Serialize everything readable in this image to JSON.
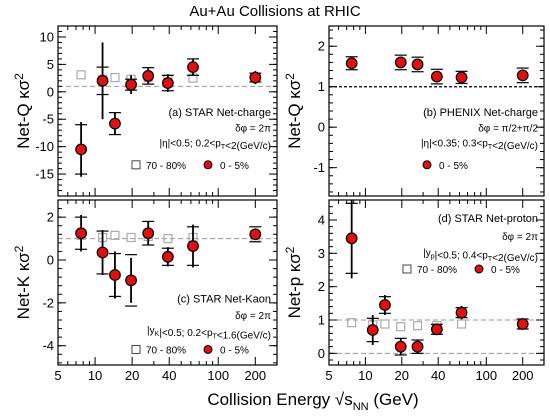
{
  "figure": {
    "title": "Au+Au Collisions at RHIC",
    "xlabel_main": "Collision Energy √s",
    "xlabel_sub": "NN",
    "xlabel_unit": " (GeV)"
  },
  "chart_data": [
    {
      "type": "scatter",
      "panel": "(a)",
      "ylabel": "Net-Q κσ",
      "ylabel_sup": "2",
      "x_scale": "log",
      "xlim": [
        5,
        300
      ],
      "ylim": [
        -19,
        12
      ],
      "yticks": [
        -15,
        -10,
        -5,
        0,
        5,
        10
      ],
      "reference_line": 1.0,
      "annotations": [
        "(a) STAR Net-charge",
        "δφ = 2π",
        "|η|<0.5; 0.2<p_T<2(GeV/c)"
      ],
      "legend": [
        "70 - 80%",
        "0 - 5%"
      ],
      "series": [
        {
          "name": "0 - 5%",
          "marker": "filled-circle",
          "color": "#e01010",
          "x": [
            7.7,
            11.5,
            14.5,
            19.6,
            27,
            39,
            62.4,
            200
          ],
          "y": [
            -10.5,
            2.0,
            -5.8,
            1.3,
            2.9,
            1.6,
            4.5,
            2.6
          ],
          "err_stat": [
            5.0,
            7.0,
            2.0,
            1.7,
            1.4,
            1.6,
            1.5,
            1.2
          ],
          "err_sys": [
            4.5,
            2.5,
            2.0,
            1.0,
            1.5,
            1.4,
            1.5,
            0.8
          ]
        },
        {
          "name": "70 - 80%",
          "marker": "open-square",
          "color": "#999999",
          "x": [
            7.7,
            11.5,
            14.5,
            19.6,
            27,
            39,
            62.4,
            200
          ],
          "y": [
            3.1,
            2.3,
            2.6,
            2.3,
            2.6,
            2.3,
            2.5,
            2.6
          ],
          "err_stat": [
            0,
            0,
            0,
            0,
            0,
            0,
            0,
            0
          ],
          "err_sys": [
            0,
            0,
            0,
            0,
            0,
            0,
            0,
            0
          ]
        }
      ]
    },
    {
      "type": "scatter",
      "panel": "(b)",
      "ylabel": "Net-Q κσ",
      "ylabel_sup": "2",
      "x_scale": "log",
      "xlim": [
        5,
        300
      ],
      "ylim": [
        -1.7,
        2.5
      ],
      "yticks": [
        -1,
        0,
        1,
        2
      ],
      "reference_line": 1.0,
      "annotations": [
        "(b) PHENIX Net-charge",
        "δφ = π/2+π/2",
        "|η|<0.35; 0.3<p_T<2(GeV/c)"
      ],
      "legend": [
        "0 - 5%"
      ],
      "series": [
        {
          "name": "0 - 5%",
          "marker": "filled-circle",
          "color": "#e01010",
          "x": [
            7.7,
            19.6,
            27,
            39,
            62.4,
            200
          ],
          "y": [
            1.58,
            1.6,
            1.55,
            1.25,
            1.23,
            1.28
          ],
          "err_stat": [
            0.1,
            0.08,
            0.09,
            0.1,
            0.1,
            0.11
          ],
          "err_sys": [
            0.16,
            0.18,
            0.18,
            0.18,
            0.15,
            0.18
          ]
        }
      ]
    },
    {
      "type": "scatter",
      "panel": "(c)",
      "ylabel": "Net-K κσ",
      "ylabel_sup": "2",
      "x_scale": "log",
      "xlim": [
        5,
        300
      ],
      "ylim": [
        -4.9,
        2.8
      ],
      "yticks": [
        -4,
        -2,
        0,
        2
      ],
      "reference_line": 1.0,
      "annotations": [
        "(c) STAR Net-Kaon",
        "δφ = 2π",
        "|y_K|<0.5; 0.2<p_T<1.6(GeV/c)"
      ],
      "legend": [
        "70 - 80%",
        "0 - 5%"
      ],
      "series": [
        {
          "name": "0 - 5%",
          "marker": "filled-circle",
          "color": "#e01010",
          "x": [
            7.7,
            11.5,
            14.5,
            19.6,
            27,
            39,
            62.4,
            200
          ],
          "y": [
            1.25,
            0.35,
            -0.7,
            -0.95,
            1.25,
            0.15,
            0.65,
            1.2
          ],
          "err_stat": [
            0.85,
            1.05,
            1.1,
            1.05,
            0.55,
            0.45,
            1.0,
            0.25
          ],
          "err_sys": [
            0.75,
            1.0,
            1.0,
            1.2,
            0.55,
            0.4,
            0.9,
            0.35
          ]
        },
        {
          "name": "70 - 80%",
          "marker": "open-square",
          "color": "#999999",
          "x": [
            7.7,
            11.5,
            14.5,
            19.6,
            27,
            39,
            62.4,
            200
          ],
          "y": [
            1.15,
            1.05,
            1.15,
            1.05,
            1.1,
            1.0,
            1.05,
            1.05
          ],
          "err_stat": [
            0,
            0,
            0,
            0,
            0,
            0,
            0,
            0
          ],
          "err_sys": [
            0,
            0,
            0,
            0,
            0,
            0,
            0,
            0
          ]
        }
      ]
    },
    {
      "type": "scatter",
      "panel": "(d)",
      "ylabel": "Net-p κσ",
      "ylabel_sup": "2",
      "x_scale": "log",
      "xlim": [
        5,
        300
      ],
      "ylim": [
        -0.35,
        4.6
      ],
      "yticks": [
        0,
        1,
        2,
        3,
        4
      ],
      "reference_line": 1.0,
      "reference_line_2": 0,
      "annotations": [
        "(d) STAR Net-proton",
        "δφ = 2π",
        "|y_p|<0.5; 0.4<p_T<2(GeV/c)"
      ],
      "legend": [
        "70 - 80%",
        "0 - 5%"
      ],
      "series": [
        {
          "name": "0 - 5%",
          "marker": "filled-circle",
          "color": "#e01010",
          "x": [
            7.7,
            11.5,
            14.5,
            19.6,
            27,
            39,
            62.4,
            200
          ],
          "y": [
            3.45,
            0.7,
            1.45,
            0.2,
            0.2,
            0.72,
            1.22,
            0.88
          ],
          "err_stat": [
            1.2,
            0.45,
            0.3,
            0.25,
            0.2,
            0.12,
            0.2,
            0.1
          ],
          "err_sys": [
            1.05,
            0.35,
            0.25,
            0.25,
            0.2,
            0.15,
            0.15,
            0.15
          ]
        },
        {
          "name": "70 - 80%",
          "marker": "open-square",
          "color": "#999999",
          "x": [
            7.7,
            11.5,
            14.5,
            19.6,
            27,
            39,
            62.4,
            200
          ],
          "y": [
            0.92,
            0.85,
            0.88,
            0.8,
            0.83,
            0.83,
            0.88,
            0.85
          ],
          "err_stat": [
            0,
            0,
            0,
            0,
            0,
            0,
            0,
            0
          ],
          "err_sys": [
            0,
            0,
            0,
            0,
            0,
            0,
            0,
            0
          ]
        }
      ]
    }
  ]
}
